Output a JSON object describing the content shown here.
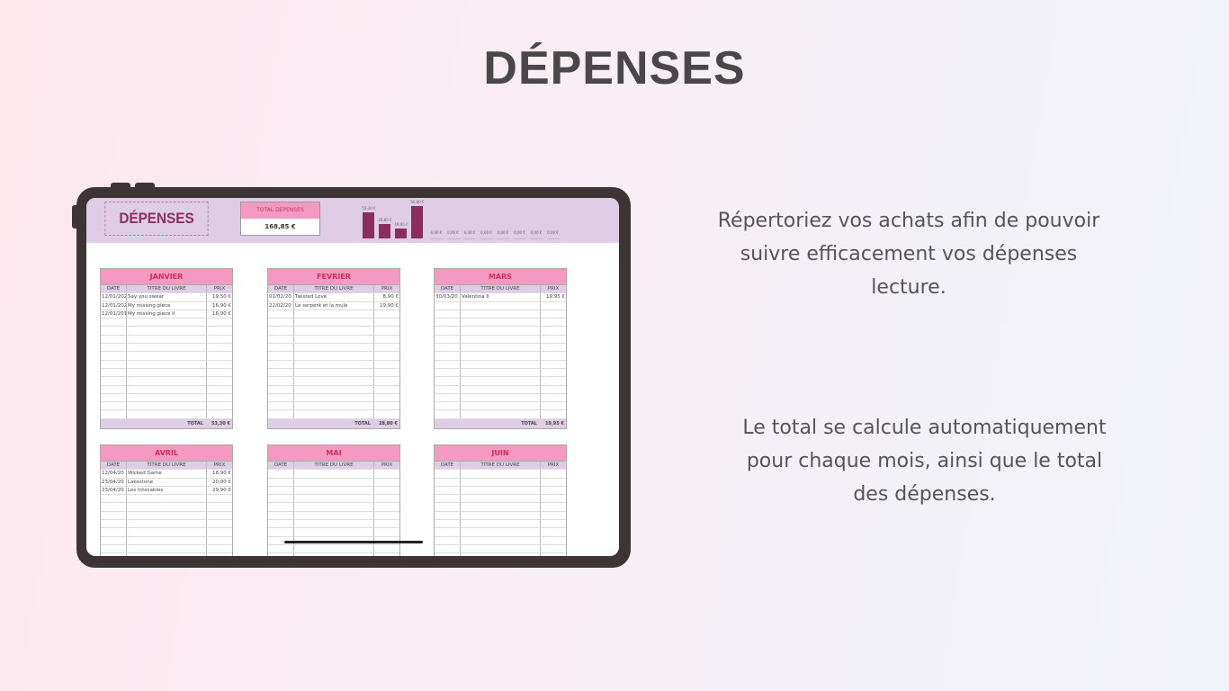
{
  "title": "DÉPENSES",
  "descriptions": [
    "Répertoriez vos achats afin de pouvoir suivre efficacement vos dépenses lecture.",
    "Le total se calcule automatiquement pour chaque mois, ainsi que le total des dépenses."
  ],
  "sheet": {
    "logo": "DÉPENSES",
    "total_label": "TOTAL DÉPENSES",
    "total_value": "168,85 €",
    "chart_labels": [
      "53,30 €",
      "28,80 €",
      "19,95 €",
      "66,80 €",
      "0,00 €",
      "0,00 €",
      "0,00 €",
      "0,00 €",
      "0,00 €",
      "0,00 €",
      "0,00 €",
      "0,00 €"
    ],
    "chart_values": [
      53.3,
      28.8,
      19.95,
      66.8,
      0,
      0,
      0,
      0,
      0,
      0,
      0,
      0
    ],
    "columns": [
      "DATE",
      "TITRE DU LIVRE",
      "PRIX"
    ],
    "total_row_label": "TOTAL",
    "months": [
      {
        "name": "JANVIER",
        "total": "53,30 €",
        "rows": [
          [
            "12/01/202",
            "Say you swear",
            "19,50 €"
          ],
          [
            "12/01/202",
            "My missing piece",
            "16,90 €"
          ],
          [
            "12/01/201",
            "My missing piece II",
            "16,90 €"
          ]
        ]
      },
      {
        "name": "FEVRIER",
        "total": "28,80 €",
        "rows": [
          [
            "01/02/20",
            "Twisted Love",
            "8,90 €"
          ],
          [
            "22/02/20",
            "Le serpent et la mule",
            "19,90 €"
          ]
        ]
      },
      {
        "name": "MARS",
        "total": "19,95 €",
        "rows": [
          [
            "30/03/20",
            "Valentina II",
            "19,95 €"
          ]
        ]
      },
      {
        "name": "AVRIL",
        "rows": [
          [
            "12/04/20",
            "Wicked Game",
            "16,90 €"
          ],
          [
            "23/04/20",
            "Lakestone",
            "20,00 €"
          ],
          [
            "23/04/20",
            "Les Intocables",
            "29,90 €"
          ]
        ]
      },
      {
        "name": "MAI",
        "rows": []
      },
      {
        "name": "JUIN",
        "rows": []
      }
    ]
  },
  "colors": {
    "bar": "#8b2d60",
    "header_pink": "#f49ac1",
    "header_text": "#d62b5c",
    "lavender": "#dfcde6",
    "frame": "#3d3436"
  }
}
